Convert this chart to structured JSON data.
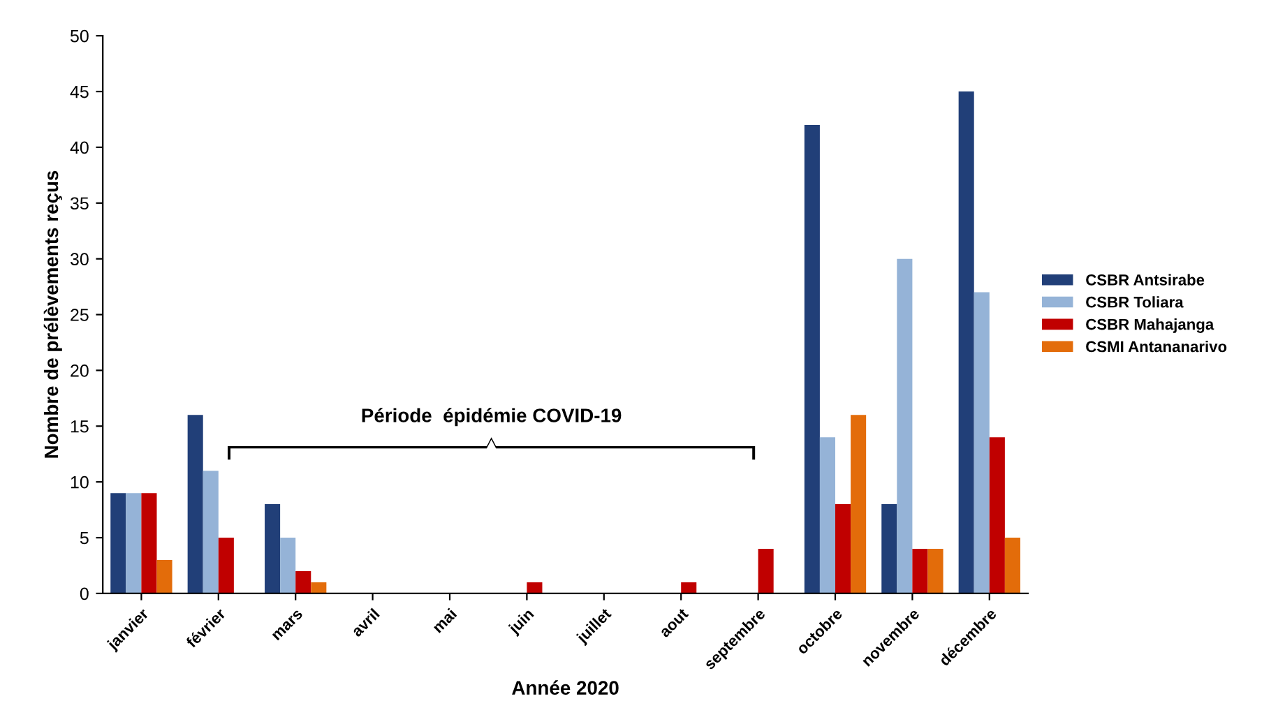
{
  "chart_data": {
    "type": "bar",
    "xlabel": "Année 2020",
    "ylabel": "Nombre de prélèvements reçus",
    "categories": [
      "janvier",
      "février",
      "mars",
      "avril",
      "mai",
      "juin",
      "juillet",
      "aout",
      "septembre",
      "octobre",
      "novembre",
      "décembre"
    ],
    "series": [
      {
        "name": "CSBR Antsirabe",
        "color": "#213f78",
        "values": [
          9,
          16,
          8,
          0,
          0,
          0,
          0,
          0,
          0,
          42,
          8,
          45
        ]
      },
      {
        "name": "CSBR Toliara",
        "color": "#95b3d7",
        "values": [
          9,
          11,
          5,
          0,
          0,
          0,
          0,
          0,
          0,
          14,
          30,
          27
        ]
      },
      {
        "name": "CSBR Mahajanga",
        "color": "#c00000",
        "values": [
          9,
          5,
          2,
          0,
          0,
          1,
          0,
          1,
          4,
          8,
          4,
          14
        ]
      },
      {
        "name": "CSMI Antananarivo",
        "color": "#e36c0a",
        "values": [
          3,
          0,
          1,
          0,
          0,
          0,
          0,
          0,
          0,
          16,
          4,
          5
        ]
      }
    ],
    "ylim": [
      0,
      50
    ],
    "yticks": [
      0,
      5,
      10,
      15,
      20,
      25,
      30,
      35,
      40,
      45,
      50
    ],
    "grid": false,
    "legend": "right",
    "annotations": [
      "Période  épidémie COVID-19"
    ]
  }
}
